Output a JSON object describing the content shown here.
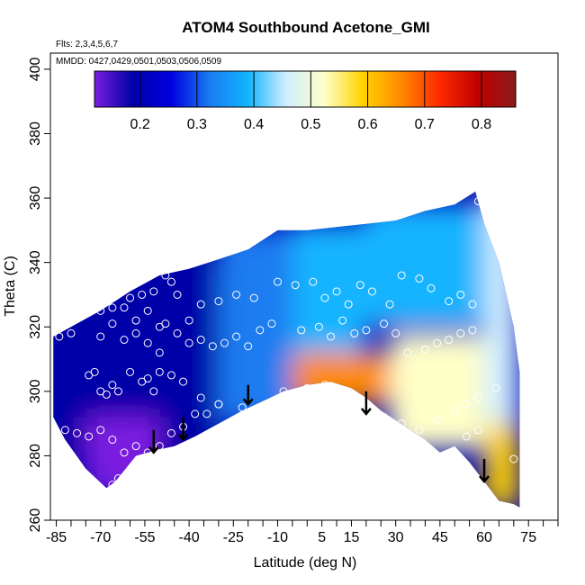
{
  "chart_data": {
    "type": "heatmap",
    "title": "ATOM4 Southbound Acetone_GMI",
    "annotations": [
      "Flts: 2,3,4,5,6,7",
      "MMDD: 0427,0429,0501,0503,0506,0509"
    ],
    "xlabel": "Latitude (deg N)",
    "ylabel": "Theta (C)",
    "xlim": [
      -87,
      85
    ],
    "ylim": [
      260,
      405
    ],
    "x_ticks": [
      -85,
      -70,
      -55,
      -40,
      -25,
      -10,
      5,
      15,
      30,
      45,
      60,
      75
    ],
    "y_ticks": [
      260,
      280,
      300,
      320,
      340,
      360,
      380,
      400
    ],
    "colorbar": {
      "range": [
        0.12,
        0.86
      ],
      "ticks": [
        0.2,
        0.3,
        0.4,
        0.5,
        0.6,
        0.7,
        0.8
      ],
      "placement": "top inside plot",
      "colors": [
        "#7a1fe0",
        "#0000a8",
        "#0000e0",
        "#1a7bf0",
        "#12b4ff",
        "#cfeeff",
        "#ffffc8",
        "#ffd400",
        "#ff8a00",
        "#ff2a00",
        "#c00000",
        "#8b1a1a"
      ]
    },
    "grid": false,
    "field": {
      "upper_boundary": [
        [
          -86,
          317
        ],
        [
          -80,
          320
        ],
        [
          -70,
          325
        ],
        [
          -60,
          331
        ],
        [
          -50,
          336
        ],
        [
          -40,
          338
        ],
        [
          -30,
          341
        ],
        [
          -20,
          344
        ],
        [
          -10,
          350
        ],
        [
          0,
          350
        ],
        [
          10,
          351
        ],
        [
          20,
          352
        ],
        [
          30,
          353
        ],
        [
          40,
          356
        ],
        [
          50,
          358
        ],
        [
          57,
          362
        ],
        [
          60,
          352
        ],
        [
          65,
          340
        ],
        [
          70,
          320
        ],
        [
          72,
          306
        ],
        [
          72,
          288
        ],
        [
          72,
          264
        ]
      ],
      "lower_boundary": [
        [
          -86,
          292
        ],
        [
          -82,
          285
        ],
        [
          -75,
          276
        ],
        [
          -68,
          270
        ],
        [
          -65,
          272
        ],
        [
          -58,
          280
        ],
        [
          -50,
          282
        ],
        [
          -45,
          283
        ],
        [
          -38,
          286
        ],
        [
          -30,
          290
        ],
        [
          -22,
          294
        ],
        [
          -15,
          297
        ],
        [
          -8,
          300
        ],
        [
          0,
          302
        ],
        [
          8,
          303
        ],
        [
          15,
          301
        ],
        [
          20,
          298
        ],
        [
          25,
          294
        ],
        [
          30,
          291
        ],
        [
          35,
          288
        ],
        [
          40,
          285
        ],
        [
          45,
          281
        ],
        [
          50,
          283
        ],
        [
          55,
          278
        ],
        [
          60,
          272
        ],
        [
          65,
          266
        ],
        [
          70,
          265
        ],
        [
          72,
          264
        ]
      ],
      "regions": [
        {
          "lat": [
            -86,
            -30
          ],
          "theta": [
            280,
            340
          ],
          "value": 0.17
        },
        {
          "lat": [
            -75,
            -50
          ],
          "theta": [
            268,
            292
          ],
          "value": 0.13
        },
        {
          "lat": [
            -30,
            -5
          ],
          "theta": [
            290,
            350
          ],
          "value": 0.3
        },
        {
          "lat": [
            -5,
            20
          ],
          "theta": [
            310,
            352
          ],
          "value": 0.36
        },
        {
          "lat": [
            20,
            60
          ],
          "theta": [
            320,
            358
          ],
          "value": 0.38
        },
        {
          "lat": [
            -5,
            28
          ],
          "theta": [
            296,
            312
          ],
          "value": 0.67
        },
        {
          "lat": [
            28,
            60
          ],
          "theta": [
            282,
            318
          ],
          "value": 0.52
        },
        {
          "lat": [
            60,
            72
          ],
          "theta": [
            264,
            290
          ],
          "value": 0.62
        },
        {
          "lat": [
            60,
            72
          ],
          "theta": [
            290,
            360
          ],
          "value": 0.45
        }
      ]
    },
    "arrows": [
      {
        "lat": -52,
        "theta_top": 288,
        "theta_tip": 281
      },
      {
        "lat": -42,
        "theta_top": 292,
        "theta_tip": 285
      },
      {
        "lat": -20,
        "theta_top": 302,
        "theta_tip": 296
      },
      {
        "lat": 20,
        "theta_top": 300,
        "theta_tip": 293
      },
      {
        "lat": 60,
        "theta_top": 279,
        "theta_tip": 272
      }
    ],
    "observations": [
      [
        -84,
        317
      ],
      [
        -80,
        318
      ],
      [
        -72,
        331
      ],
      [
        -70,
        325
      ],
      [
        -68,
        329
      ],
      [
        -66,
        326
      ],
      [
        -64,
        331
      ],
      [
        -62,
        326
      ],
      [
        -60,
        329
      ],
      [
        -58,
        322
      ],
      [
        -56,
        330
      ],
      [
        -54,
        325
      ],
      [
        -52,
        331
      ],
      [
        -50,
        320
      ],
      [
        -48,
        336
      ],
      [
        -46,
        334
      ],
      [
        -44,
        330
      ],
      [
        -40,
        322
      ],
      [
        -36,
        327
      ],
      [
        -30,
        328
      ],
      [
        -24,
        330
      ],
      [
        -18,
        329
      ],
      [
        -10,
        334
      ],
      [
        -4,
        333
      ],
      [
        2,
        334
      ],
      [
        6,
        329
      ],
      [
        10,
        331
      ],
      [
        14,
        327
      ],
      [
        18,
        333
      ],
      [
        22,
        331
      ],
      [
        28,
        327
      ],
      [
        32,
        336
      ],
      [
        38,
        335
      ],
      [
        42,
        332
      ],
      [
        48,
        328
      ],
      [
        52,
        330
      ],
      [
        56,
        327
      ],
      [
        58,
        359
      ],
      [
        -70,
        317
      ],
      [
        -66,
        321
      ],
      [
        -62,
        316
      ],
      [
        -58,
        318
      ],
      [
        -54,
        315
      ],
      [
        -50,
        312
      ],
      [
        -48,
        321
      ],
      [
        -44,
        318
      ],
      [
        -40,
        315
      ],
      [
        -36,
        316
      ],
      [
        -32,
        314
      ],
      [
        -28,
        315
      ],
      [
        -24,
        317
      ],
      [
        -20,
        314
      ],
      [
        -16,
        319
      ],
      [
        -12,
        321
      ],
      [
        -2,
        319
      ],
      [
        4,
        320
      ],
      [
        8,
        317
      ],
      [
        12,
        322
      ],
      [
        16,
        318
      ],
      [
        20,
        319
      ],
      [
        26,
        321
      ],
      [
        30,
        318
      ],
      [
        34,
        312
      ],
      [
        40,
        313
      ],
      [
        44,
        315
      ],
      [
        48,
        316
      ],
      [
        52,
        318
      ],
      [
        56,
        319
      ],
      [
        -74,
        305
      ],
      [
        -72,
        306
      ],
      [
        -70,
        300
      ],
      [
        -68,
        299
      ],
      [
        -66,
        302
      ],
      [
        -64,
        300
      ],
      [
        -60,
        306
      ],
      [
        -56,
        303
      ],
      [
        -54,
        304
      ],
      [
        -52,
        300
      ],
      [
        -50,
        306
      ],
      [
        -46,
        305
      ],
      [
        -42,
        303
      ],
      [
        -36,
        298
      ],
      [
        -30,
        296
      ],
      [
        -22,
        295
      ],
      [
        -8,
        300
      ],
      [
        0,
        301
      ],
      [
        6,
        302
      ],
      [
        12,
        300
      ],
      [
        16,
        298
      ],
      [
        18,
        297
      ],
      [
        26,
        292
      ],
      [
        32,
        290
      ],
      [
        38,
        288
      ],
      [
        44,
        291
      ],
      [
        50,
        294
      ],
      [
        54,
        296
      ],
      [
        58,
        298
      ],
      [
        64,
        301
      ],
      [
        -82,
        288
      ],
      [
        -78,
        287
      ],
      [
        -74,
        286
      ],
      [
        -70,
        288
      ],
      [
        -66,
        285
      ],
      [
        -62,
        281
      ],
      [
        -58,
        283
      ],
      [
        -54,
        281
      ],
      [
        -50,
        283
      ],
      [
        -46,
        287
      ],
      [
        -42,
        289
      ],
      [
        -38,
        293
      ],
      [
        -34,
        293
      ],
      [
        -30,
        296
      ],
      [
        -66,
        271
      ],
      [
        -64,
        273
      ],
      [
        46,
        280
      ],
      [
        54,
        286
      ],
      [
        58,
        288
      ],
      [
        70,
        279
      ]
    ]
  }
}
